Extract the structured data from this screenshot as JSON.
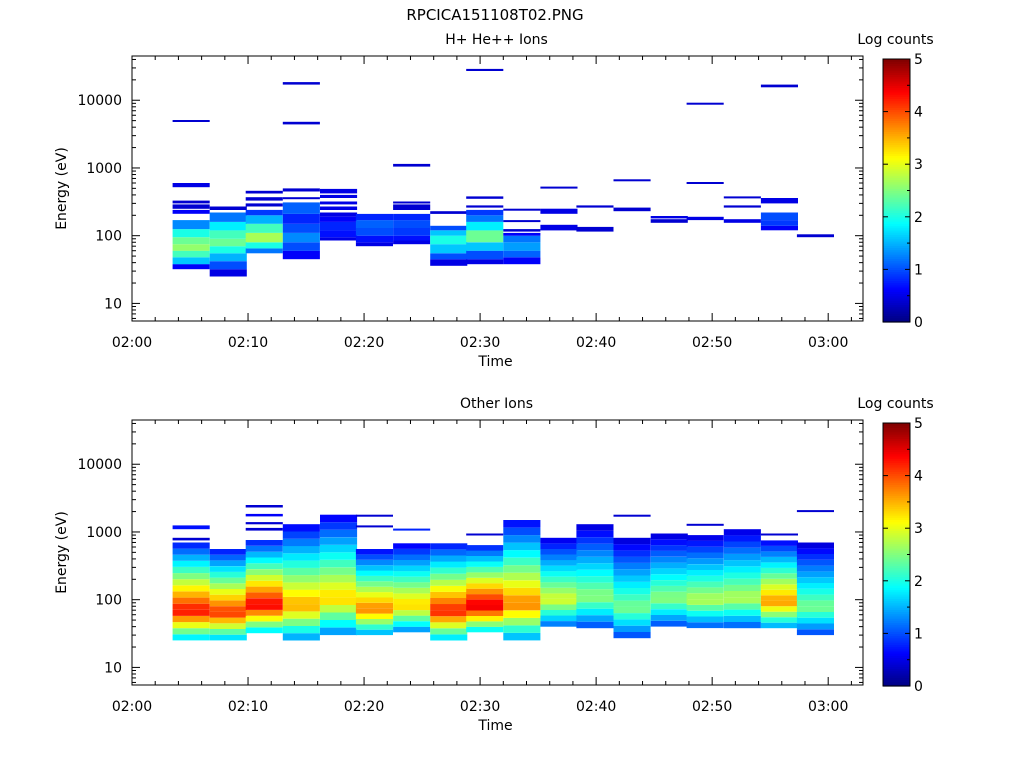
{
  "page_title": "RPCICA151108T02.PNG",
  "colormap": [
    "#00007f",
    "#0000ff",
    "#0080ff",
    "#00ffff",
    "#80ff80",
    "#ffff00",
    "#ff8000",
    "#ff0000",
    "#7f0000"
  ],
  "colorbar": {
    "label": "Log counts",
    "ticks": [
      "0",
      "1",
      "2",
      "3",
      "4",
      "5"
    ],
    "range": [
      0,
      5
    ]
  },
  "chart_data": [
    {
      "type": "heatmap",
      "title": "H+ He++ Ions",
      "xlabel": "Time",
      "ylabel": "Energy (eV)",
      "x_ticks": [
        "02:00",
        "02:10",
        "02:20",
        "02:30",
        "02:40",
        "02:50",
        "03:00"
      ],
      "xlim_minutes": [
        0,
        63
      ],
      "y_scale": "log",
      "y_ticks": [
        "10",
        "100",
        "1000",
        "10000"
      ],
      "ylim": [
        5.5,
        45000
      ],
      "time_bins_start_minutes": [
        3.5,
        6.7,
        9.8,
        13.0,
        16.2,
        19.3,
        22.5,
        25.7,
        28.8,
        32.0,
        35.2,
        38.3,
        41.5,
        44.7,
        47.8,
        51.0,
        54.2,
        57.3
      ],
      "bin_width_minutes": 3.2,
      "cells": [
        [
          0,
          32,
          38,
          0.6
        ],
        [
          0,
          38,
          48,
          1.6
        ],
        [
          0,
          48,
          60,
          2.2
        ],
        [
          0,
          60,
          75,
          2.6
        ],
        [
          0,
          75,
          95,
          2.4
        ],
        [
          0,
          95,
          125,
          2.0
        ],
        [
          0,
          125,
          170,
          1.3
        ],
        [
          0,
          210,
          240,
          0.6
        ],
        [
          0,
          250,
          290,
          0.4
        ],
        [
          0,
          300,
          330,
          0.4
        ],
        [
          0,
          520,
          600,
          0.5
        ],
        [
          0,
          4800,
          5100,
          0.4
        ],
        [
          1,
          25,
          32,
          0.5
        ],
        [
          1,
          32,
          42,
          1.0
        ],
        [
          1,
          42,
          55,
          1.5
        ],
        [
          1,
          55,
          70,
          2.0
        ],
        [
          1,
          70,
          90,
          2.4
        ],
        [
          1,
          90,
          120,
          2.2
        ],
        [
          1,
          120,
          160,
          1.8
        ],
        [
          1,
          160,
          220,
          1.2
        ],
        [
          1,
          240,
          270,
          0.4
        ],
        [
          2,
          55,
          65,
          1.2
        ],
        [
          2,
          65,
          80,
          2.0
        ],
        [
          2,
          80,
          110,
          2.7
        ],
        [
          2,
          110,
          150,
          2.2
        ],
        [
          2,
          150,
          200,
          1.5
        ],
        [
          2,
          200,
          240,
          0.9
        ],
        [
          2,
          270,
          300,
          0.4
        ],
        [
          2,
          330,
          370,
          0.4
        ],
        [
          2,
          420,
          460,
          0.4
        ],
        [
          3,
          45,
          60,
          0.6
        ],
        [
          3,
          60,
          80,
          1.0
        ],
        [
          3,
          80,
          110,
          1.3
        ],
        [
          3,
          110,
          150,
          1.0
        ],
        [
          3,
          150,
          210,
          0.8
        ],
        [
          3,
          210,
          310,
          1.1
        ],
        [
          3,
          350,
          370,
          0.4
        ],
        [
          3,
          450,
          500,
          0.4
        ],
        [
          3,
          4400,
          4800,
          0.4
        ],
        [
          3,
          17000,
          18500,
          0.4
        ],
        [
          4,
          85,
          95,
          0.5
        ],
        [
          4,
          95,
          120,
          0.7
        ],
        [
          4,
          120,
          160,
          0.8
        ],
        [
          4,
          160,
          190,
          0.6
        ],
        [
          4,
          190,
          220,
          0.5
        ],
        [
          4,
          240,
          270,
          0.5
        ],
        [
          4,
          290,
          320,
          0.5
        ],
        [
          4,
          360,
          400,
          0.5
        ],
        [
          4,
          420,
          490,
          0.5
        ],
        [
          5,
          70,
          80,
          0.5
        ],
        [
          5,
          80,
          100,
          0.7
        ],
        [
          5,
          100,
          130,
          1.0
        ],
        [
          5,
          130,
          170,
          1.1
        ],
        [
          5,
          170,
          210,
          0.8
        ],
        [
          6,
          75,
          85,
          0.5
        ],
        [
          6,
          85,
          100,
          0.7
        ],
        [
          6,
          100,
          130,
          0.9
        ],
        [
          6,
          130,
          170,
          1.0
        ],
        [
          6,
          170,
          210,
          0.8
        ],
        [
          6,
          240,
          290,
          0.4
        ],
        [
          6,
          300,
          320,
          0.4
        ],
        [
          6,
          1050,
          1150,
          0.4
        ],
        [
          7,
          36,
          45,
          0.5
        ],
        [
          7,
          45,
          55,
          1.0
        ],
        [
          7,
          55,
          75,
          1.6
        ],
        [
          7,
          75,
          100,
          2.0
        ],
        [
          7,
          100,
          120,
          1.6
        ],
        [
          7,
          120,
          140,
          1.0
        ],
        [
          7,
          210,
          230,
          0.4
        ],
        [
          8,
          38,
          45,
          0.5
        ],
        [
          8,
          45,
          60,
          1.0
        ],
        [
          8,
          60,
          80,
          1.6
        ],
        [
          8,
          80,
          120,
          2.4
        ],
        [
          8,
          120,
          160,
          1.8
        ],
        [
          8,
          160,
          200,
          1.2
        ],
        [
          8,
          200,
          240,
          0.9
        ],
        [
          8,
          260,
          280,
          0.4
        ],
        [
          8,
          350,
          380,
          0.4
        ],
        [
          8,
          27000,
          29000,
          0.4
        ],
        [
          9,
          38,
          48,
          0.6
        ],
        [
          9,
          48,
          60,
          1.1
        ],
        [
          9,
          60,
          80,
          1.4
        ],
        [
          9,
          80,
          100,
          1.2
        ],
        [
          9,
          100,
          110,
          0.6
        ],
        [
          9,
          115,
          125,
          0.4
        ],
        [
          9,
          160,
          170,
          0.4
        ],
        [
          9,
          235,
          250,
          0.4
        ],
        [
          10,
          120,
          145,
          0.5
        ],
        [
          10,
          210,
          250,
          0.5
        ],
        [
          10,
          500,
          530,
          0.4
        ],
        [
          11,
          115,
          135,
          0.4
        ],
        [
          11,
          260,
          280,
          0.4
        ],
        [
          12,
          230,
          260,
          0.4
        ],
        [
          12,
          640,
          680,
          0.4
        ],
        [
          13,
          155,
          175,
          0.4
        ],
        [
          13,
          180,
          195,
          0.5
        ],
        [
          14,
          170,
          190,
          0.5
        ],
        [
          14,
          590,
          620,
          0.4
        ],
        [
          14,
          8600,
          9200,
          0.4
        ],
        [
          15,
          155,
          175,
          0.5
        ],
        [
          15,
          260,
          280,
          0.4
        ],
        [
          15,
          360,
          380,
          0.4
        ],
        [
          16,
          120,
          140,
          0.6
        ],
        [
          16,
          140,
          170,
          0.9
        ],
        [
          16,
          170,
          220,
          1.0
        ],
        [
          16,
          300,
          360,
          0.5
        ],
        [
          16,
          15500,
          17000,
          0.4
        ],
        [
          17,
          95,
          105,
          0.4
        ]
      ]
    },
    {
      "type": "heatmap",
      "title": "Other Ions",
      "xlabel": "Time",
      "ylabel": "Energy (eV)",
      "x_ticks": [
        "02:00",
        "02:10",
        "02:20",
        "02:30",
        "02:40",
        "02:50",
        "03:00"
      ],
      "xlim_minutes": [
        0,
        63
      ],
      "y_scale": "log",
      "y_ticks": [
        "10",
        "100",
        "1000",
        "10000"
      ],
      "ylim": [
        5.5,
        45000
      ],
      "time_bins_start_minutes": [
        3.5,
        6.7,
        9.8,
        13.0,
        16.2,
        19.3,
        22.5,
        25.7,
        28.8,
        32.0,
        35.2,
        38.3,
        41.5,
        44.7,
        47.8,
        51.0,
        54.2,
        57.3
      ],
      "bin_width_minutes": 3.2,
      "columns": [
        {
          "low": 25,
          "high": 700,
          "peak": 4.4,
          "extras": [
            [
              1100,
              1250,
              0.7
            ],
            [
              750,
              820,
              0.4
            ]
          ]
        },
        {
          "low": 25,
          "high": 560,
          "peak": 4.2,
          "extras": []
        },
        {
          "low": 32,
          "high": 760,
          "peak": 4.5,
          "extras": [
            [
              2300,
              2500,
              0.4
            ],
            [
              1700,
              1850,
              0.6
            ],
            [
              1300,
              1400,
              0.4
            ],
            [
              1050,
              1150,
              0.4
            ]
          ]
        },
        {
          "low": 25,
          "high": 1300,
          "peak": 3.6,
          "extras": []
        },
        {
          "low": 30,
          "high": 1800,
          "peak": 3.4,
          "extras": []
        },
        {
          "low": 30,
          "high": 560,
          "peak": 3.8,
          "extras": [
            [
              1700,
              1800,
              0.4
            ],
            [
              1200,
              1250,
              0.4
            ]
          ]
        },
        {
          "low": 33,
          "high": 680,
          "peak": 3.4,
          "extras": [
            [
              1080,
              1120,
              0.8
            ]
          ]
        },
        {
          "low": 25,
          "high": 680,
          "peak": 4.3,
          "extras": []
        },
        {
          "low": 33,
          "high": 640,
          "peak": 4.6,
          "extras": [
            [
              900,
              950,
              0.4
            ]
          ]
        },
        {
          "low": 25,
          "high": 1500,
          "peak": 3.8,
          "extras": []
        },
        {
          "low": 40,
          "high": 820,
          "peak": 3.0,
          "extras": []
        },
        {
          "low": 38,
          "high": 1300,
          "peak": 2.6,
          "extras": []
        },
        {
          "low": 27,
          "high": 820,
          "peak": 2.5,
          "extras": [
            [
              1700,
              1800,
              0.4
            ]
          ]
        },
        {
          "low": 40,
          "high": 950,
          "peak": 2.6,
          "extras": []
        },
        {
          "low": 38,
          "high": 900,
          "peak": 2.8,
          "extras": [
            [
              1250,
              1320,
              0.4
            ]
          ]
        },
        {
          "low": 38,
          "high": 1100,
          "peak": 2.8,
          "extras": []
        },
        {
          "low": 38,
          "high": 750,
          "peak": 3.7,
          "extras": [
            [
              900,
              950,
              0.4
            ]
          ]
        },
        {
          "low": 30,
          "high": 700,
          "peak": 2.5,
          "extras": [
            [
              2000,
              2100,
              0.4
            ]
          ]
        }
      ]
    }
  ]
}
